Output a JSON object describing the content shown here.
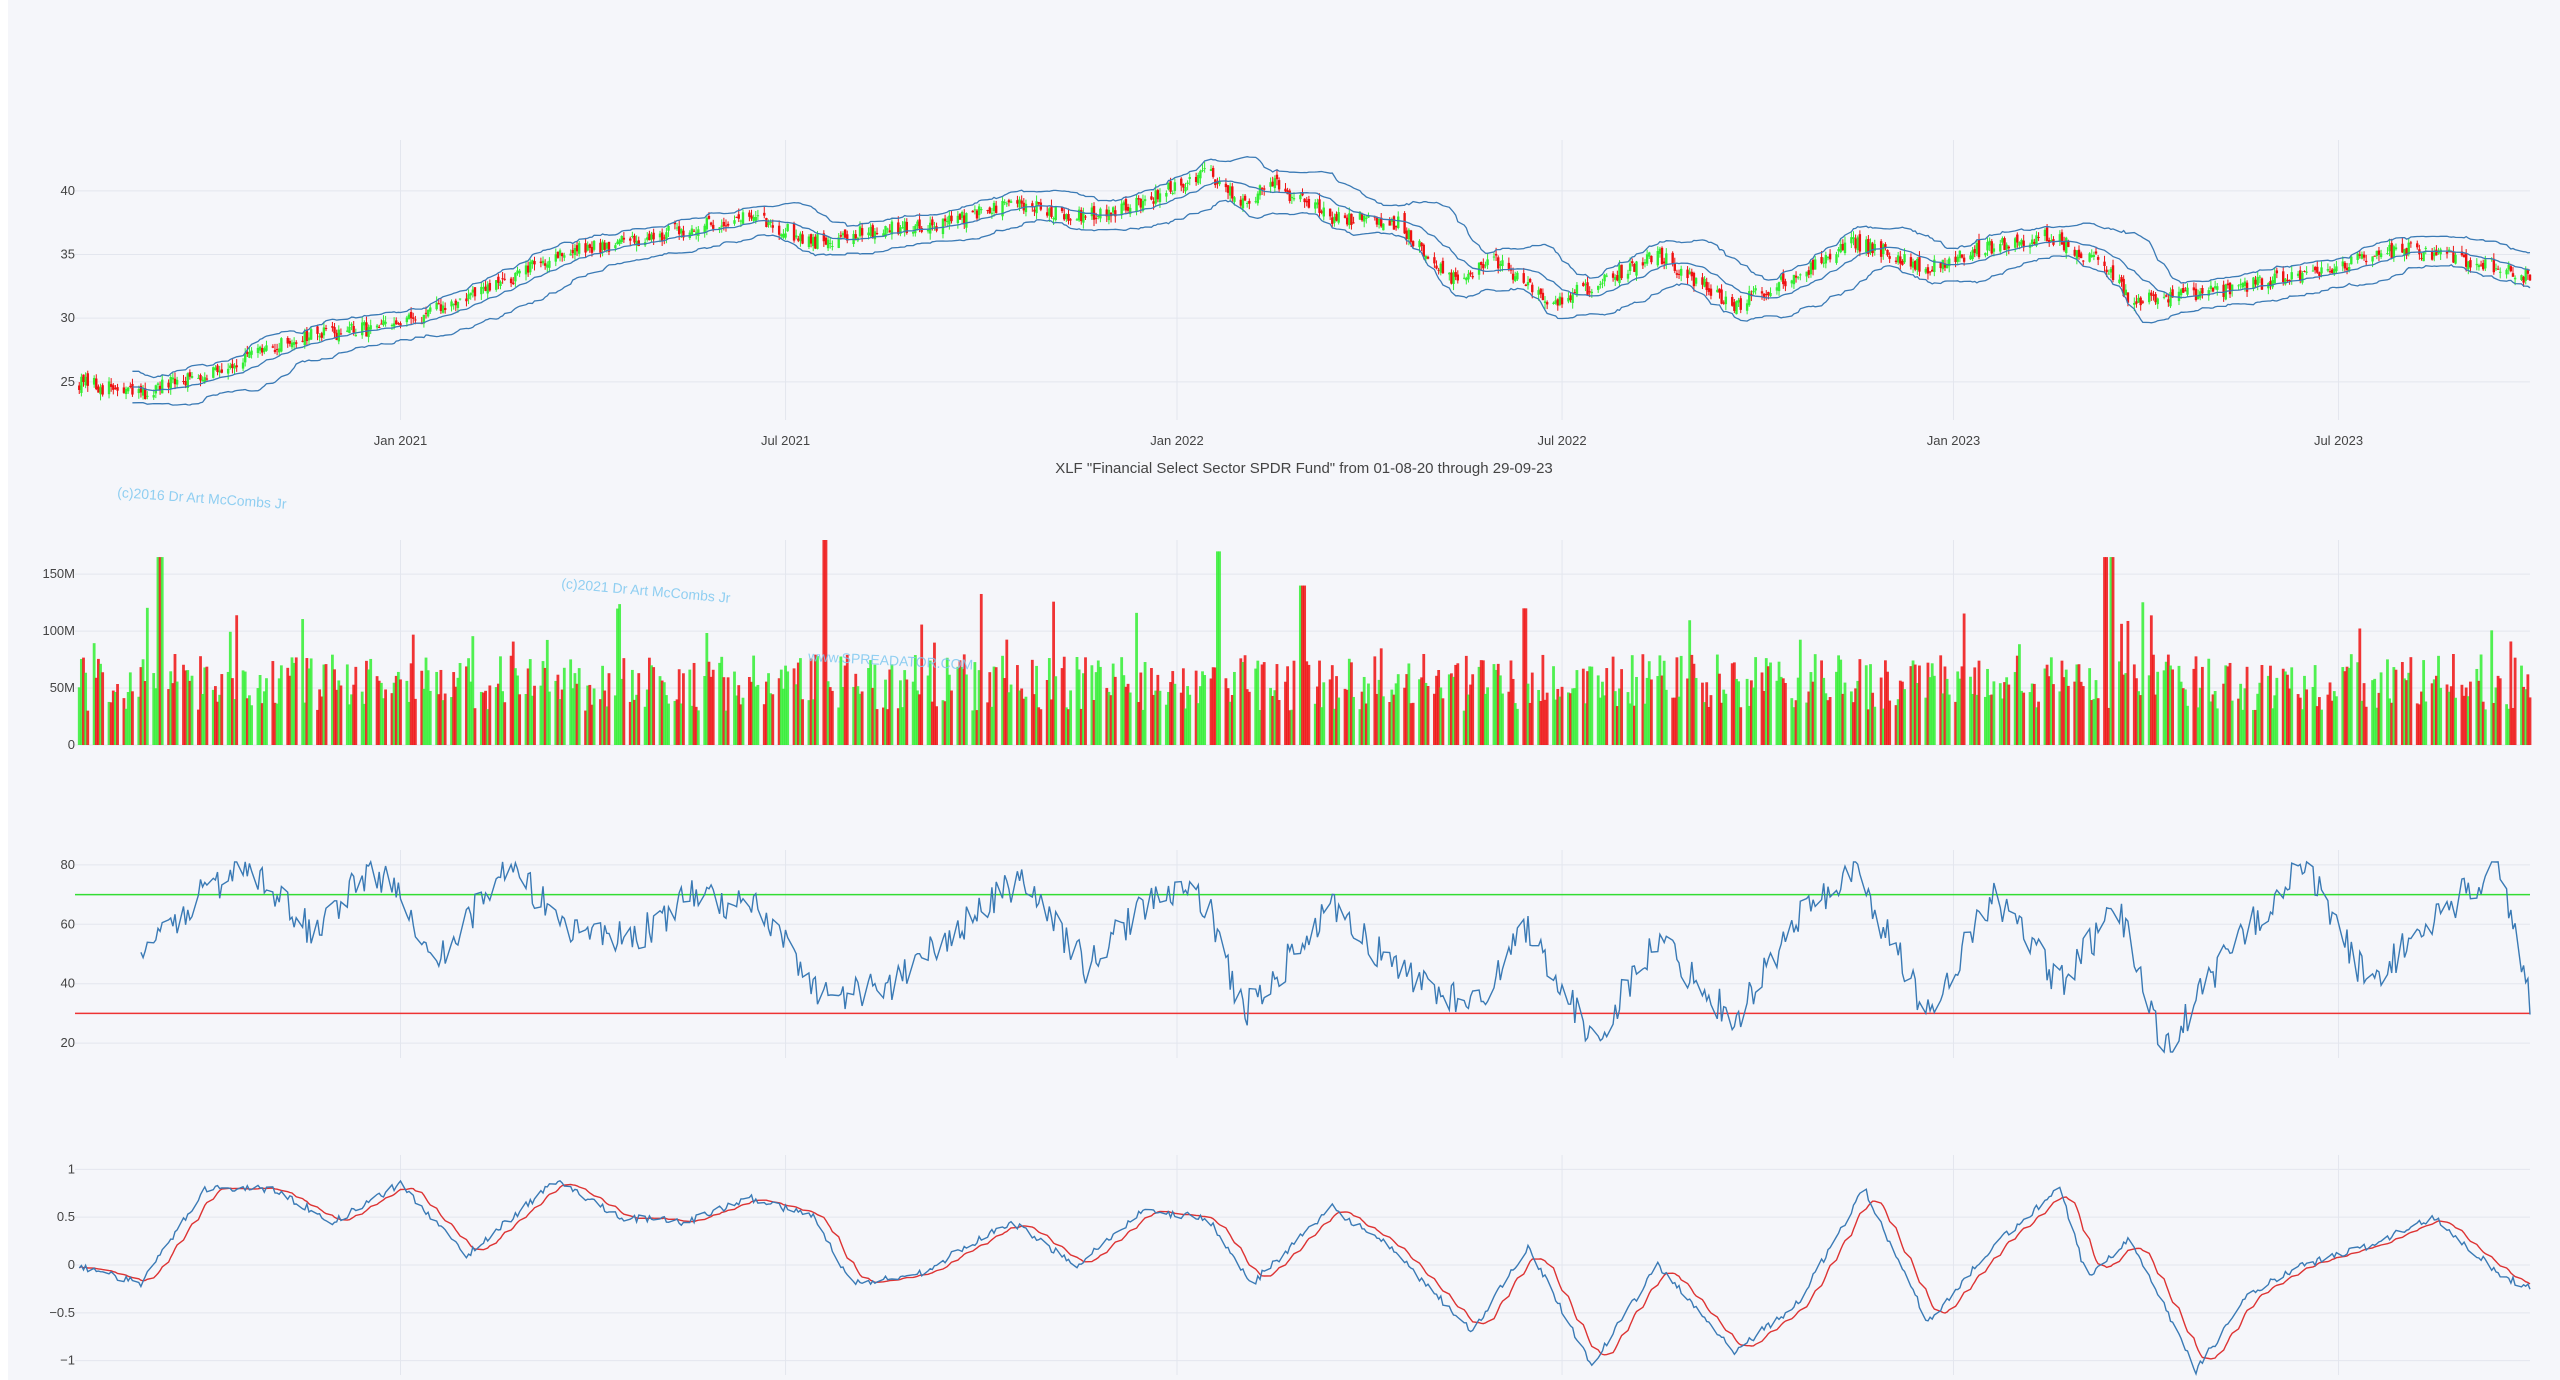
{
  "colors": {
    "background": "#f5f6fa",
    "grid": "#e3e6ee",
    "up_candle": "#33ee33",
    "down_candle": "#ee1111",
    "bollinger": "#3a7ab5",
    "rsi": "#3a7ab5",
    "rsi_upper": "#33dd33",
    "rsi_lower": "#ee3333",
    "osc_fast": "#3a7ab5",
    "osc_slow": "#dd3333",
    "watermark": "#7ec8f0"
  },
  "subtitle": "XLF \"Financial Select Sector SPDR Fund\" from 01-08-20 through 29-09-23",
  "watermarks": [
    "(c)2016 Dr Art McCombs Jr",
    "(c)2021 Dr Art McCombs Jr",
    "www.SPREADATOR.COM"
  ],
  "chart_data": [
    {
      "type": "candlestick",
      "name": "price",
      "x_range": [
        "2020-08-01",
        "2023-09-29"
      ],
      "x_ticks": [
        "Jan 2021",
        "Jul 2021",
        "Jan 2022",
        "Jul 2022",
        "Jan 2023",
        "Jul 2023"
      ],
      "y_ticks": [
        25,
        30,
        35,
        40
      ],
      "ylim": [
        22,
        44
      ],
      "close_anchors": [
        [
          "2020-08-01",
          25.0
        ],
        [
          "2020-09-01",
          24.0
        ],
        [
          "2020-10-15",
          26.5
        ],
        [
          "2020-11-15",
          28.5
        ],
        [
          "2021-01-01",
          29.5
        ],
        [
          "2021-02-15",
          32.5
        ],
        [
          "2021-03-15",
          35.0
        ],
        [
          "2021-05-01",
          36.5
        ],
        [
          "2021-06-15",
          38.0
        ],
        [
          "2021-07-15",
          36.0
        ],
        [
          "2021-08-15",
          37.0
        ],
        [
          "2021-09-15",
          37.5
        ],
        [
          "2021-10-15",
          39.0
        ],
        [
          "2021-11-15",
          38.0
        ],
        [
          "2021-12-15",
          39.0
        ],
        [
          "2022-01-15",
          41.5
        ],
        [
          "2022-02-01",
          39.0
        ],
        [
          "2022-02-15",
          40.5
        ],
        [
          "2022-03-15",
          38.0
        ],
        [
          "2022-04-15",
          37.5
        ],
        [
          "2022-05-10",
          33.0
        ],
        [
          "2022-06-01",
          34.5
        ],
        [
          "2022-06-25",
          31.0
        ],
        [
          "2022-08-15",
          35.0
        ],
        [
          "2022-09-20",
          31.0
        ],
        [
          "2022-10-15",
          33.0
        ],
        [
          "2022-11-15",
          36.0
        ],
        [
          "2022-12-20",
          34.0
        ],
        [
          "2023-01-15",
          35.5
        ],
        [
          "2023-02-15",
          36.5
        ],
        [
          "2023-03-10",
          34.5
        ],
        [
          "2023-03-25",
          31.5
        ],
        [
          "2023-05-01",
          32.0
        ],
        [
          "2023-06-15",
          33.5
        ],
        [
          "2023-08-01",
          35.5
        ],
        [
          "2023-09-15",
          34.0
        ],
        [
          "2023-09-29",
          33.2
        ]
      ]
    },
    {
      "type": "bar",
      "name": "volume",
      "y_ticks": [
        "0",
        "50M",
        "100M",
        "150M"
      ],
      "y_tick_values": [
        0,
        50,
        100,
        150
      ],
      "ylim": [
        0,
        180
      ],
      "unit": "M",
      "typical_range": [
        30,
        80
      ],
      "spikes": [
        [
          "2020-09-10",
          165
        ],
        [
          "2021-07-19",
          180
        ],
        [
          "2022-01-21",
          170
        ],
        [
          "2022-03-01",
          140
        ],
        [
          "2022-06-13",
          120
        ],
        [
          "2023-03-13",
          165
        ],
        [
          "2023-03-17",
          165
        ]
      ]
    },
    {
      "type": "line",
      "name": "rsi",
      "y_ticks": [
        20,
        40,
        60,
        80
      ],
      "ylim": [
        15,
        85
      ],
      "upper_level": 70,
      "lower_level": 30,
      "start": "2020-09-01",
      "anchors": [
        [
          "2020-09-01",
          48
        ],
        [
          "2020-10-01",
          72
        ],
        [
          "2020-10-20",
          79
        ],
        [
          "2020-11-20",
          58
        ],
        [
          "2020-12-20",
          79
        ],
        [
          "2021-01-20",
          50
        ],
        [
          "2021-02-20",
          79
        ],
        [
          "2021-03-20",
          60
        ],
        [
          "2021-04-20",
          55
        ],
        [
          "2021-05-20",
          70
        ],
        [
          "2021-06-20",
          65
        ],
        [
          "2021-07-20",
          35
        ],
        [
          "2021-08-20",
          40
        ],
        [
          "2021-09-20",
          58
        ],
        [
          "2021-10-20",
          76
        ],
        [
          "2021-11-20",
          45
        ],
        [
          "2021-12-20",
          70
        ],
        [
          "2022-01-15",
          68
        ],
        [
          "2022-02-01",
          30
        ],
        [
          "2022-03-15",
          65
        ],
        [
          "2022-04-15",
          45
        ],
        [
          "2022-05-20",
          32
        ],
        [
          "2022-06-15",
          60
        ],
        [
          "2022-07-15",
          20
        ],
        [
          "2022-08-15",
          55
        ],
        [
          "2022-09-20",
          28
        ],
        [
          "2022-10-20",
          62
        ],
        [
          "2022-11-15",
          79
        ],
        [
          "2022-12-20",
          30
        ],
        [
          "2023-01-20",
          70
        ],
        [
          "2023-02-20",
          40
        ],
        [
          "2023-03-20",
          65
        ],
        [
          "2023-04-10",
          18
        ],
        [
          "2023-05-15",
          55
        ],
        [
          "2023-06-15",
          80
        ],
        [
          "2023-07-15",
          40
        ],
        [
          "2023-08-15",
          62
        ],
        [
          "2023-09-15",
          80
        ],
        [
          "2023-09-29",
          35
        ]
      ]
    },
    {
      "type": "line",
      "name": "oscillator",
      "y_ticks": [
        "1",
        "0.5",
        "0",
        "−0.5",
        "−1"
      ],
      "y_tick_values": [
        1,
        0.5,
        0,
        -0.5,
        -1
      ],
      "ylim": [
        -1.15,
        1.15
      ],
      "anchors": [
        [
          "2020-08-01",
          0.0
        ],
        [
          "2020-09-01",
          -0.2
        ],
        [
          "2020-10-01",
          0.8
        ],
        [
          "2020-11-01",
          0.8
        ],
        [
          "2020-12-01",
          0.45
        ],
        [
          "2021-01-01",
          0.85
        ],
        [
          "2021-02-01",
          0.1
        ],
        [
          "2021-03-15",
          0.88
        ],
        [
          "2021-04-15",
          0.5
        ],
        [
          "2021-05-15",
          0.45
        ],
        [
          "2021-06-15",
          0.7
        ],
        [
          "2021-07-15",
          0.5
        ],
        [
          "2021-08-01",
          -0.2
        ],
        [
          "2021-09-01",
          -0.1
        ],
        [
          "2021-10-15",
          0.45
        ],
        [
          "2021-11-15",
          0.0
        ],
        [
          "2021-12-15",
          0.55
        ],
        [
          "2022-01-15",
          0.5
        ],
        [
          "2022-02-05",
          -0.2
        ],
        [
          "2022-03-15",
          0.6
        ],
        [
          "2022-04-10",
          0.2
        ],
        [
          "2022-05-20",
          -0.7
        ],
        [
          "2022-06-15",
          0.2
        ],
        [
          "2022-07-15",
          -1.05
        ],
        [
          "2022-08-15",
          0.0
        ],
        [
          "2022-09-20",
          -0.9
        ],
        [
          "2022-10-20",
          -0.4
        ],
        [
          "2022-11-20",
          0.8
        ],
        [
          "2022-12-20",
          -0.6
        ],
        [
          "2023-01-20",
          0.2
        ],
        [
          "2023-02-20",
          0.8
        ],
        [
          "2023-03-05",
          -0.15
        ],
        [
          "2023-03-25",
          0.3
        ],
        [
          "2023-04-25",
          -1.1
        ],
        [
          "2023-05-20",
          -0.3
        ],
        [
          "2023-06-15",
          0.0
        ],
        [
          "2023-07-15",
          0.2
        ],
        [
          "2023-08-15",
          0.5
        ],
        [
          "2023-09-15",
          -0.1
        ],
        [
          "2023-09-29",
          -0.25
        ]
      ]
    }
  ]
}
